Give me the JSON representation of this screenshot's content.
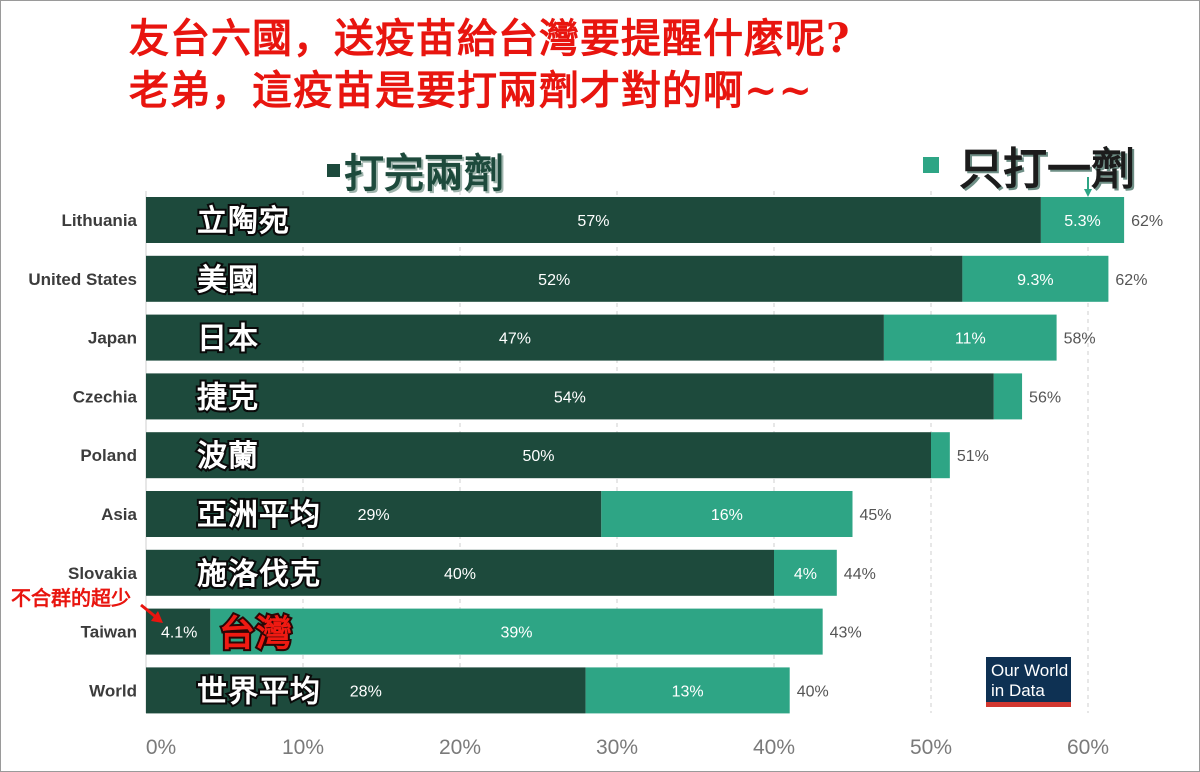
{
  "headline": {
    "line1": "友台六國，送疫苗給台灣要提醒什麼呢?",
    "line2": "老弟，這疫苗是要打兩劑才對的啊~~"
  },
  "legend": {
    "full": "打完兩劑",
    "partial": "只打一劑"
  },
  "annotation": "不合群的超少",
  "logo": {
    "line1": "Our World",
    "line2": "in Data"
  },
  "colors": {
    "full": "#1d4a3c",
    "partial": "#2ea585",
    "headline": "#e8150f",
    "logo_bg": "#0e3153",
    "logo_bar": "#d2372f"
  },
  "chart_data": {
    "type": "bar",
    "orientation": "horizontal",
    "stacked": true,
    "categories": [
      "Lithuania",
      "United States",
      "Japan",
      "Czechia",
      "Poland",
      "Asia",
      "Slovakia",
      "Taiwan",
      "World"
    ],
    "chinese_labels": [
      "立陶宛",
      "美國",
      "日本",
      "捷克",
      "波蘭",
      "亞洲平均",
      "施洛伐克",
      "台灣",
      "世界平均"
    ],
    "series": [
      {
        "name": "打完兩劑",
        "values": [
          57,
          52,
          47,
          54,
          50,
          29,
          40,
          4.1,
          28
        ]
      },
      {
        "name": "只打一劑",
        "values": [
          5.3,
          9.3,
          11,
          1.8,
          1.2,
          16,
          4,
          39,
          13
        ]
      }
    ],
    "full_labels": [
      "57%",
      "52%",
      "47%",
      "54%",
      "50%",
      "29%",
      "40%",
      "4.1%",
      "28%"
    ],
    "partial_labels": [
      "5.3%",
      "9.3%",
      "11%",
      "",
      "",
      "16%",
      "4%",
      "39%",
      "13%"
    ],
    "total_labels": [
      "62%",
      "62%",
      "58%",
      "56%",
      "51%",
      "45%",
      "44%",
      "43%",
      "40%"
    ],
    "xticks": [
      "0%",
      "10%",
      "20%",
      "30%",
      "40%",
      "50%",
      "60%"
    ],
    "xlim": [
      0,
      62.5
    ],
    "grid": true,
    "legend": "top"
  }
}
